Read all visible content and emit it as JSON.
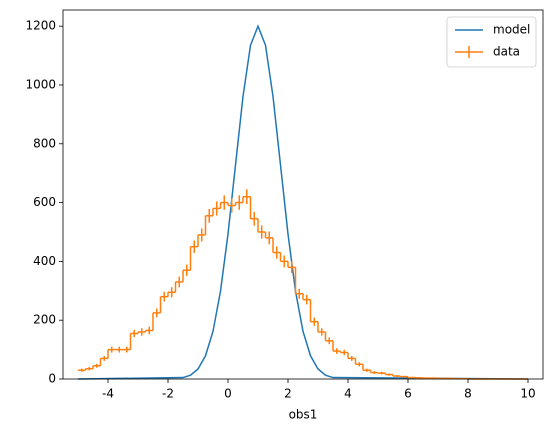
{
  "chart_data": {
    "type": "histogram",
    "xlabel": "obs1",
    "xlim": [
      -5.5,
      10.5
    ],
    "ylim": [
      0,
      1255
    ],
    "xticks": [
      -4,
      -2,
      0,
      2,
      4,
      6,
      8,
      10
    ],
    "yticks": [
      0,
      200,
      400,
      600,
      800,
      1000,
      1200
    ],
    "legend": "upper right",
    "model": {
      "name": "model",
      "color": "#1f77b4",
      "x": [
        -5,
        -1.5,
        -1.25,
        -1,
        -0.75,
        -0.5,
        -0.25,
        0,
        0.25,
        0.5,
        0.75,
        1,
        1.25,
        1.5,
        1.75,
        2,
        2.25,
        2.5,
        2.75,
        3,
        3.25,
        3.5,
        10
      ],
      "values": [
        0,
        5,
        13,
        34,
        79,
        162,
        299,
        493,
        728,
        961,
        1135,
        1200,
        1135,
        961,
        728,
        493,
        299,
        162,
        79,
        34,
        13,
        5,
        0
      ]
    },
    "data": {
      "name": "data",
      "color": "#ff7f0e",
      "bins": [
        -5,
        -4.75,
        -4.5,
        -4.25,
        -4,
        -3.75,
        -3.5,
        -3.25,
        -3,
        -2.75,
        -2.5,
        -2.25,
        -2,
        -1.75,
        -1.5,
        -1.25,
        -1,
        -0.75,
        -0.5,
        -0.25,
        0,
        0.25,
        0.5,
        0.75,
        1,
        1.25,
        1.5,
        1.75,
        2,
        2.25,
        2.5,
        2.75,
        3,
        3.25,
        3.5,
        3.75,
        4,
        4.25,
        4.5,
        4.75,
        5,
        5.25,
        5.5,
        5.75,
        6,
        6.25,
        6.5,
        6.75,
        7,
        7.25,
        7.5,
        7.75,
        8,
        8.25,
        8.5,
        8.75,
        9,
        9.25,
        9.5,
        9.75,
        10
      ],
      "counts": [
        30,
        35,
        45,
        70,
        100,
        100,
        100,
        155,
        160,
        165,
        225,
        280,
        295,
        330,
        370,
        450,
        490,
        555,
        580,
        600,
        590,
        600,
        620,
        545,
        500,
        480,
        430,
        400,
        380,
        290,
        270,
        195,
        160,
        130,
        95,
        90,
        70,
        50,
        30,
        22,
        20,
        15,
        10,
        8,
        5,
        4,
        3,
        3,
        2,
        2,
        1,
        1,
        0,
        0,
        0,
        0,
        0,
        0,
        0,
        0
      ],
      "errors": [
        5.5,
        5.9,
        6.7,
        8.4,
        10,
        10,
        10,
        12.4,
        12.6,
        12.8,
        15,
        16.7,
        17.2,
        18.2,
        19.2,
        21.2,
        22.1,
        23.6,
        24.1,
        24.5,
        24.3,
        24.5,
        24.9,
        23.3,
        22.4,
        21.9,
        20.7,
        20,
        19.5,
        17,
        16.4,
        14,
        12.6,
        11.4,
        9.7,
        9.5,
        8.4,
        7.1,
        5.5,
        4.7,
        4.5,
        3.9,
        3.2,
        2.8,
        2.2,
        2,
        1.7,
        1.7,
        1.4,
        1.4,
        1,
        1,
        0,
        0,
        0,
        0,
        0,
        0,
        0,
        0
      ]
    }
  }
}
